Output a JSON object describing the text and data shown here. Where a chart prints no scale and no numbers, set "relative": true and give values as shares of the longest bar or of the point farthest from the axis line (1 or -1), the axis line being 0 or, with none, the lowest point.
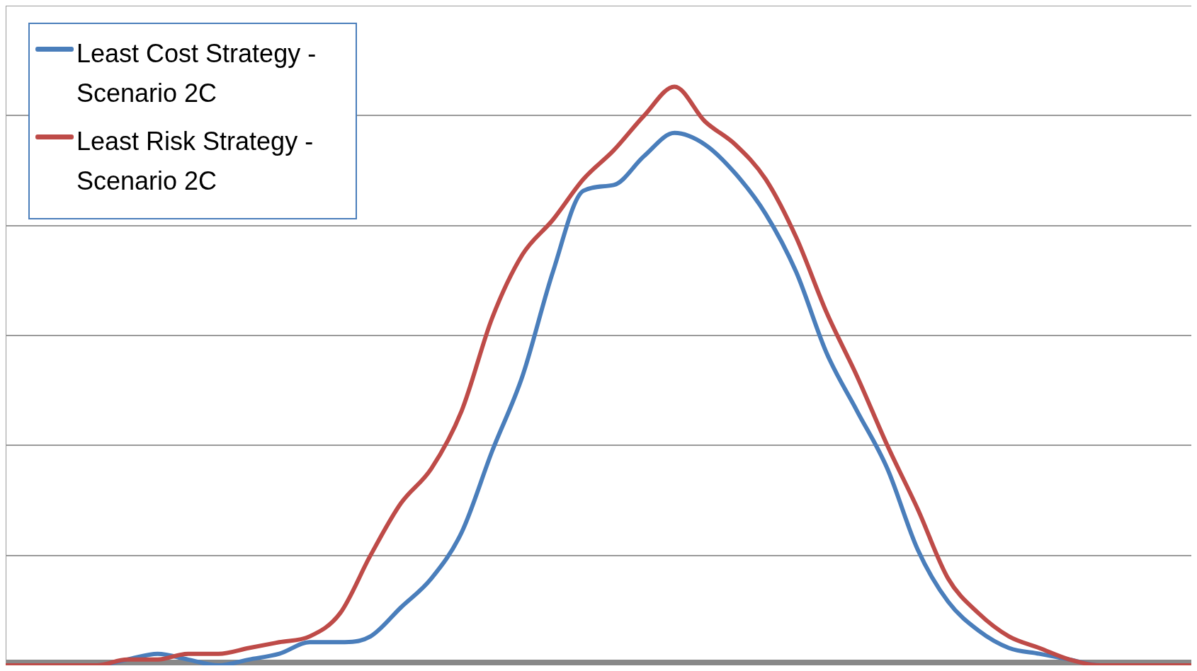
{
  "chart_data": {
    "type": "line",
    "relative": true,
    "grid": "y",
    "legend": "top left",
    "marker": "none",
    "line_style": "solid",
    "categories": [
      null,
      null,
      null,
      null,
      null,
      null,
      null,
      null,
      null,
      null,
      null,
      null,
      null,
      null,
      null,
      null,
      null,
      null,
      null,
      null,
      null,
      null,
      null,
      null,
      null,
      null,
      null,
      null,
      null,
      null,
      null,
      null,
      null,
      null,
      null,
      null,
      null,
      null,
      null,
      null
    ],
    "series": [
      {
        "name": "Least Cost Strategy - Scenario 2C",
        "color": "#4a7ebb",
        "values": [
          null,
          null,
          0,
          0,
          0.01,
          0.02,
          0.01,
          0,
          0.01,
          0.02,
          0.04,
          0.04,
          0.05,
          0.1,
          0.15,
          0.23,
          0.37,
          0.5,
          0.68,
          0.82,
          0.83,
          0.88,
          0.92,
          0.9,
          0.85,
          0.78,
          0.68,
          0.54,
          0.44,
          0.34,
          0.2,
          0.11,
          0.06,
          0.03,
          0.02,
          0.01,
          0,
          0,
          null,
          null
        ]
      },
      {
        "name": "Least Risk Strategy - Scenario 2C",
        "color": "#be4b48",
        "values": [
          0,
          0,
          0,
          0,
          0.01,
          0.01,
          0.02,
          0.02,
          0.03,
          0.04,
          0.05,
          0.09,
          0.19,
          0.28,
          0.34,
          0.44,
          0.6,
          0.71,
          0.77,
          0.84,
          0.89,
          0.95,
          1,
          0.94,
          0.9,
          0.84,
          0.74,
          0.61,
          0.5,
          0.38,
          0.27,
          0.15,
          0.09,
          0.05,
          0.03,
          0.01,
          0,
          0,
          0,
          0
        ]
      }
    ]
  }
}
